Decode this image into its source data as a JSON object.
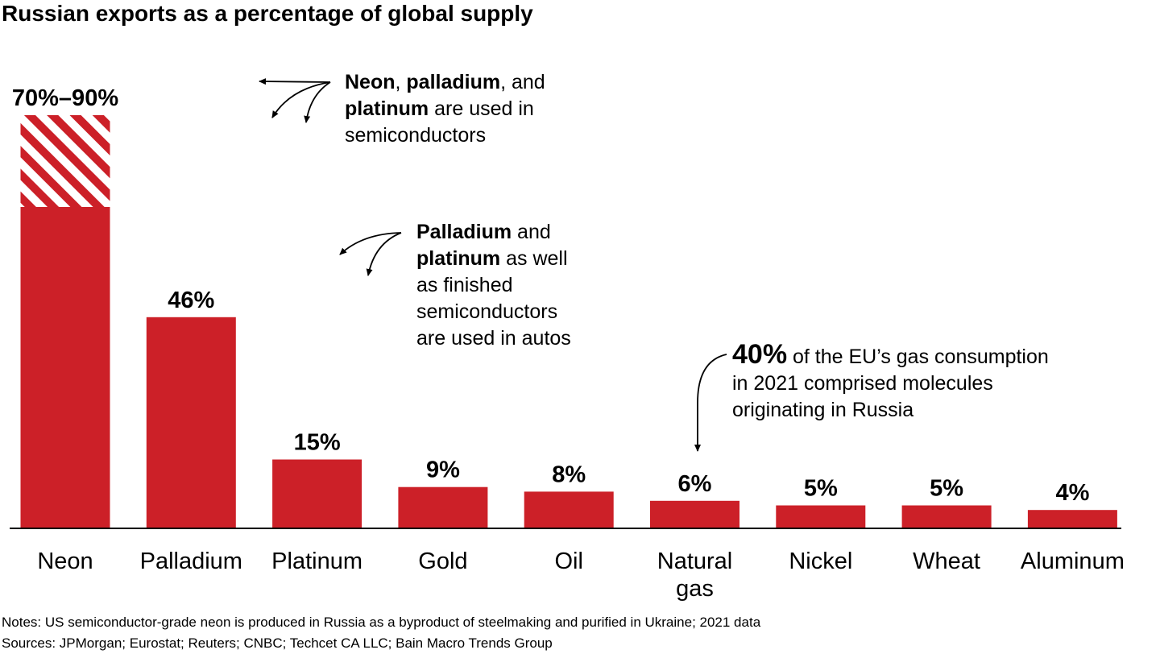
{
  "chart_data": {
    "type": "bar",
    "title": "Russian exports as a percentage of global supply",
    "ylim": [
      0,
      100
    ],
    "categories": [
      "Neon",
      "Palladium",
      "Platinum",
      "Gold",
      "Oil",
      "Natural gas",
      "Nickel",
      "Wheat",
      "Aluminum"
    ],
    "values": [
      70,
      46,
      15,
      9,
      8,
      6,
      5,
      5,
      4
    ],
    "ranges": [
      {
        "category": "Neon",
        "low": 70,
        "high": 90
      }
    ],
    "data_labels": [
      "70%–90%",
      "46%",
      "15%",
      "9%",
      "8%",
      "6%",
      "5%",
      "5%",
      "4%"
    ],
    "bar_color": "#cc2028",
    "grid": false
  },
  "annotations": {
    "semiconductors": {
      "b1": "Neon",
      "t1": ", ",
      "b2": "palladium",
      "t2": ", and",
      "b3": "platinum",
      "t3": " are used in",
      "t4": "semiconductors"
    },
    "autos": {
      "b1": "Palladium",
      "t1": " and",
      "b2": "platinum",
      "t2": " as well",
      "t3": "as finished",
      "t4": "semiconductors",
      "t5": "are used in autos"
    },
    "gas": {
      "big": "40%",
      "t1": " of the EU’s gas consumption",
      "t2": "in 2021 comprised molecules",
      "t3": "originating in Russia"
    }
  },
  "notes": "Notes: US semiconductor-grade neon is produced in Russia as a byproduct of steelmaking and purified in Ukraine; 2021 data",
  "sources": "Sources: JPMorgan; Eurostat; Reuters; CNBC; Techcet CA LLC; Bain Macro Trends Group"
}
